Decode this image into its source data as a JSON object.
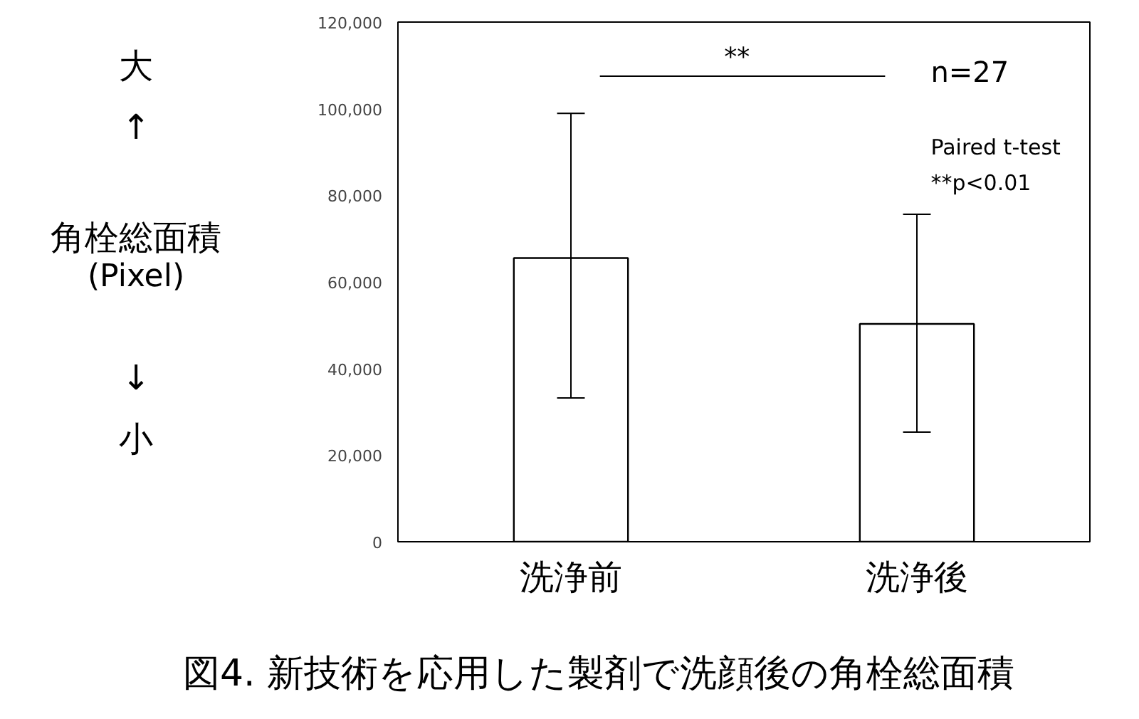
{
  "chart_data": {
    "type": "bar",
    "title": "図4. 新技術を応用した製剤で洗顔後の角栓総面積",
    "ylabel": "角栓総面積\n(Pixel)",
    "categories": [
      "洗浄前",
      "洗浄後"
    ],
    "values": [
      65500,
      50300
    ],
    "errors": [
      [
        33200,
        98900
      ],
      [
        25300,
        75600
      ]
    ],
    "color": "#ffffff",
    "ylim": [
      0,
      120000
    ],
    "yticks": [
      {
        "value": 0,
        "label": "0"
      },
      {
        "value": 20000,
        "label": "20,000"
      },
      {
        "value": 40000,
        "label": "40,000"
      },
      {
        "value": 60000,
        "label": "60,000"
      },
      {
        "value": 80000,
        "label": "80,000"
      },
      {
        "value": 100000,
        "label": "100,000"
      },
      {
        "value": 120000,
        "label": "120,000"
      }
    ],
    "annotations": [
      "大",
      "↑",
      "↓",
      "小",
      "**",
      "n=27",
      "Paired t-test",
      "**p<0.01"
    ],
    "grid": false
  }
}
